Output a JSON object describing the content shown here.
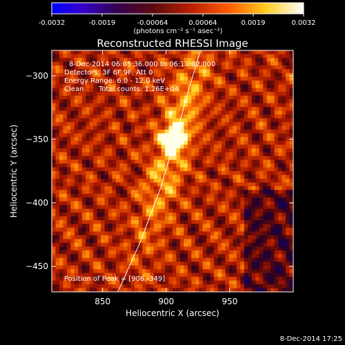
{
  "colorbar": {
    "ticks": [
      "-0.0032",
      "-0.0019",
      "-0.00064",
      "0.00064",
      "0.0019",
      "0.0032"
    ],
    "unit_label": "(photons cm⁻² s⁻¹ asec⁻²)",
    "range": [
      -0.0032,
      0.0032
    ],
    "colormap": "rainbow-to-hot",
    "low_color": "#0000ff",
    "high_color": "#ffffff"
  },
  "chart_data": {
    "type": "heatmap",
    "title": "Reconstructed RHESSI Image",
    "xlabel": "Heliocentric X (arcsec)",
    "ylabel": "Heliocentric Y (arcsec)",
    "xlim": [
      810,
      1000
    ],
    "ylim": [
      -470,
      -280
    ],
    "x_ticks": [
      850,
      900,
      950
    ],
    "y_ticks": [
      -300,
      -350,
      -400,
      -450
    ],
    "annotations": [
      "8-Dec-2014 06:05:36.000 to 06:11:02.000",
      "Detectors: 3F 6F 9F, Att 0",
      "Energy Range: 6.0 - 12.0 keV",
      "Clean",
      "Total counts: 1.26E+04"
    ],
    "peak_label": "Position of Peak = [906,-349]",
    "peak": [
      906,
      -349
    ],
    "limb_curve": [
      [
        862,
        -470
      ],
      [
        880,
        -430
      ],
      [
        895,
        -390
      ],
      [
        907,
        -350
      ],
      [
        918,
        -310
      ],
      [
        927,
        -280
      ]
    ],
    "footer": "8-Dec-2014 17:25"
  }
}
